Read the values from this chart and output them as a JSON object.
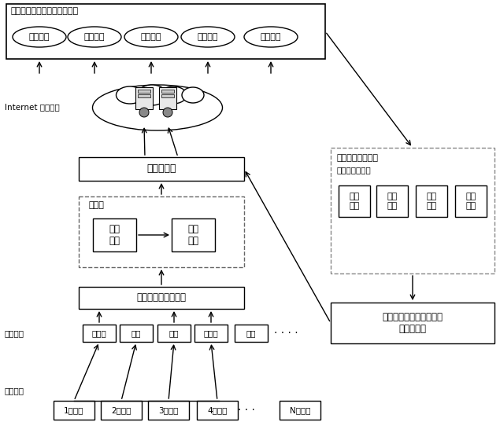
{
  "title": "机床故障诊断与预测服务平台",
  "platform_items": [
    "故障报警",
    "故障预测",
    "知识查询",
    "设备维护",
    "统计分析"
  ],
  "internet_label": "Internet 远程服务",
  "rule_db": "形成规则库",
  "knowledge_base_label": "知识库",
  "kb_item1": "属性\n约简",
  "kb_item2": "规则\n获取",
  "decompose_box": "变尺度经验模态分解",
  "sensor_label": "传感器群",
  "sample_label": "样本获取",
  "sensors": [
    "声发射",
    "振动",
    "噪声",
    "切削力",
    "温度"
  ],
  "machines": [
    "1号机床",
    "2号机床",
    "3号机床",
    "4号机床",
    "N号机床"
  ],
  "error_title1": "动态误差信息反馈",
  "error_title2": "误差来源包括：",
  "error_items": [
    [
      "工况\n变化",
      ""
    ],
    [
      "特性\n变化",
      ""
    ],
    [
      "参数\n变化",
      ""
    ],
    [
      "干扰\n影响",
      ""
    ]
  ],
  "dynamic_box": "动态协调度方法进行规则\n自适应优化",
  "bg_color": "#ffffff"
}
